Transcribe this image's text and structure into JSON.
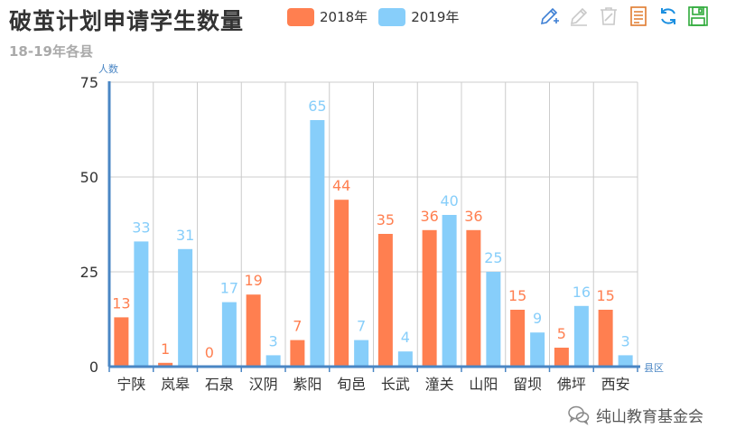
{
  "title": "破茧计划申请学生数量",
  "subtitle": "18-19年各县",
  "watermark": "纯山教育基金会",
  "toolbox": [
    {
      "name": "mark-icon",
      "color": "#3d7fd4"
    },
    {
      "name": "mark-undo-icon",
      "color": "#c8c8c8"
    },
    {
      "name": "mark-clear-icon",
      "color": "#c8c8c8"
    },
    {
      "name": "data-view-icon",
      "color": "#e07b2e"
    },
    {
      "name": "restore-icon",
      "color": "#1a8fe0"
    },
    {
      "name": "save-image-icon",
      "color": "#2eaa3a"
    }
  ],
  "chart_data": {
    "type": "bar",
    "title": "破茧计划申请学生数量",
    "subtitle": "18-19年各县",
    "xlabel": "县区",
    "ylabel": "人数",
    "ylim": [
      0,
      75
    ],
    "yticks": [
      0,
      25,
      50,
      75
    ],
    "categories": [
      "宁陕",
      "岚皋",
      "石泉",
      "汉阴",
      "紫阳",
      "旬邑",
      "长武",
      "潼关",
      "山阳",
      "留坝",
      "佛坪",
      "西安"
    ],
    "series": [
      {
        "name": "2018年",
        "color": "#ff7f50",
        "values": [
          13,
          1,
          0,
          19,
          7,
          44,
          35,
          36,
          36,
          15,
          5,
          15
        ]
      },
      {
        "name": "2019年",
        "color": "#87cefa",
        "values": [
          33,
          31,
          17,
          3,
          65,
          7,
          4,
          40,
          25,
          9,
          16,
          3
        ]
      }
    ],
    "legend_position": "top",
    "grid": true
  }
}
